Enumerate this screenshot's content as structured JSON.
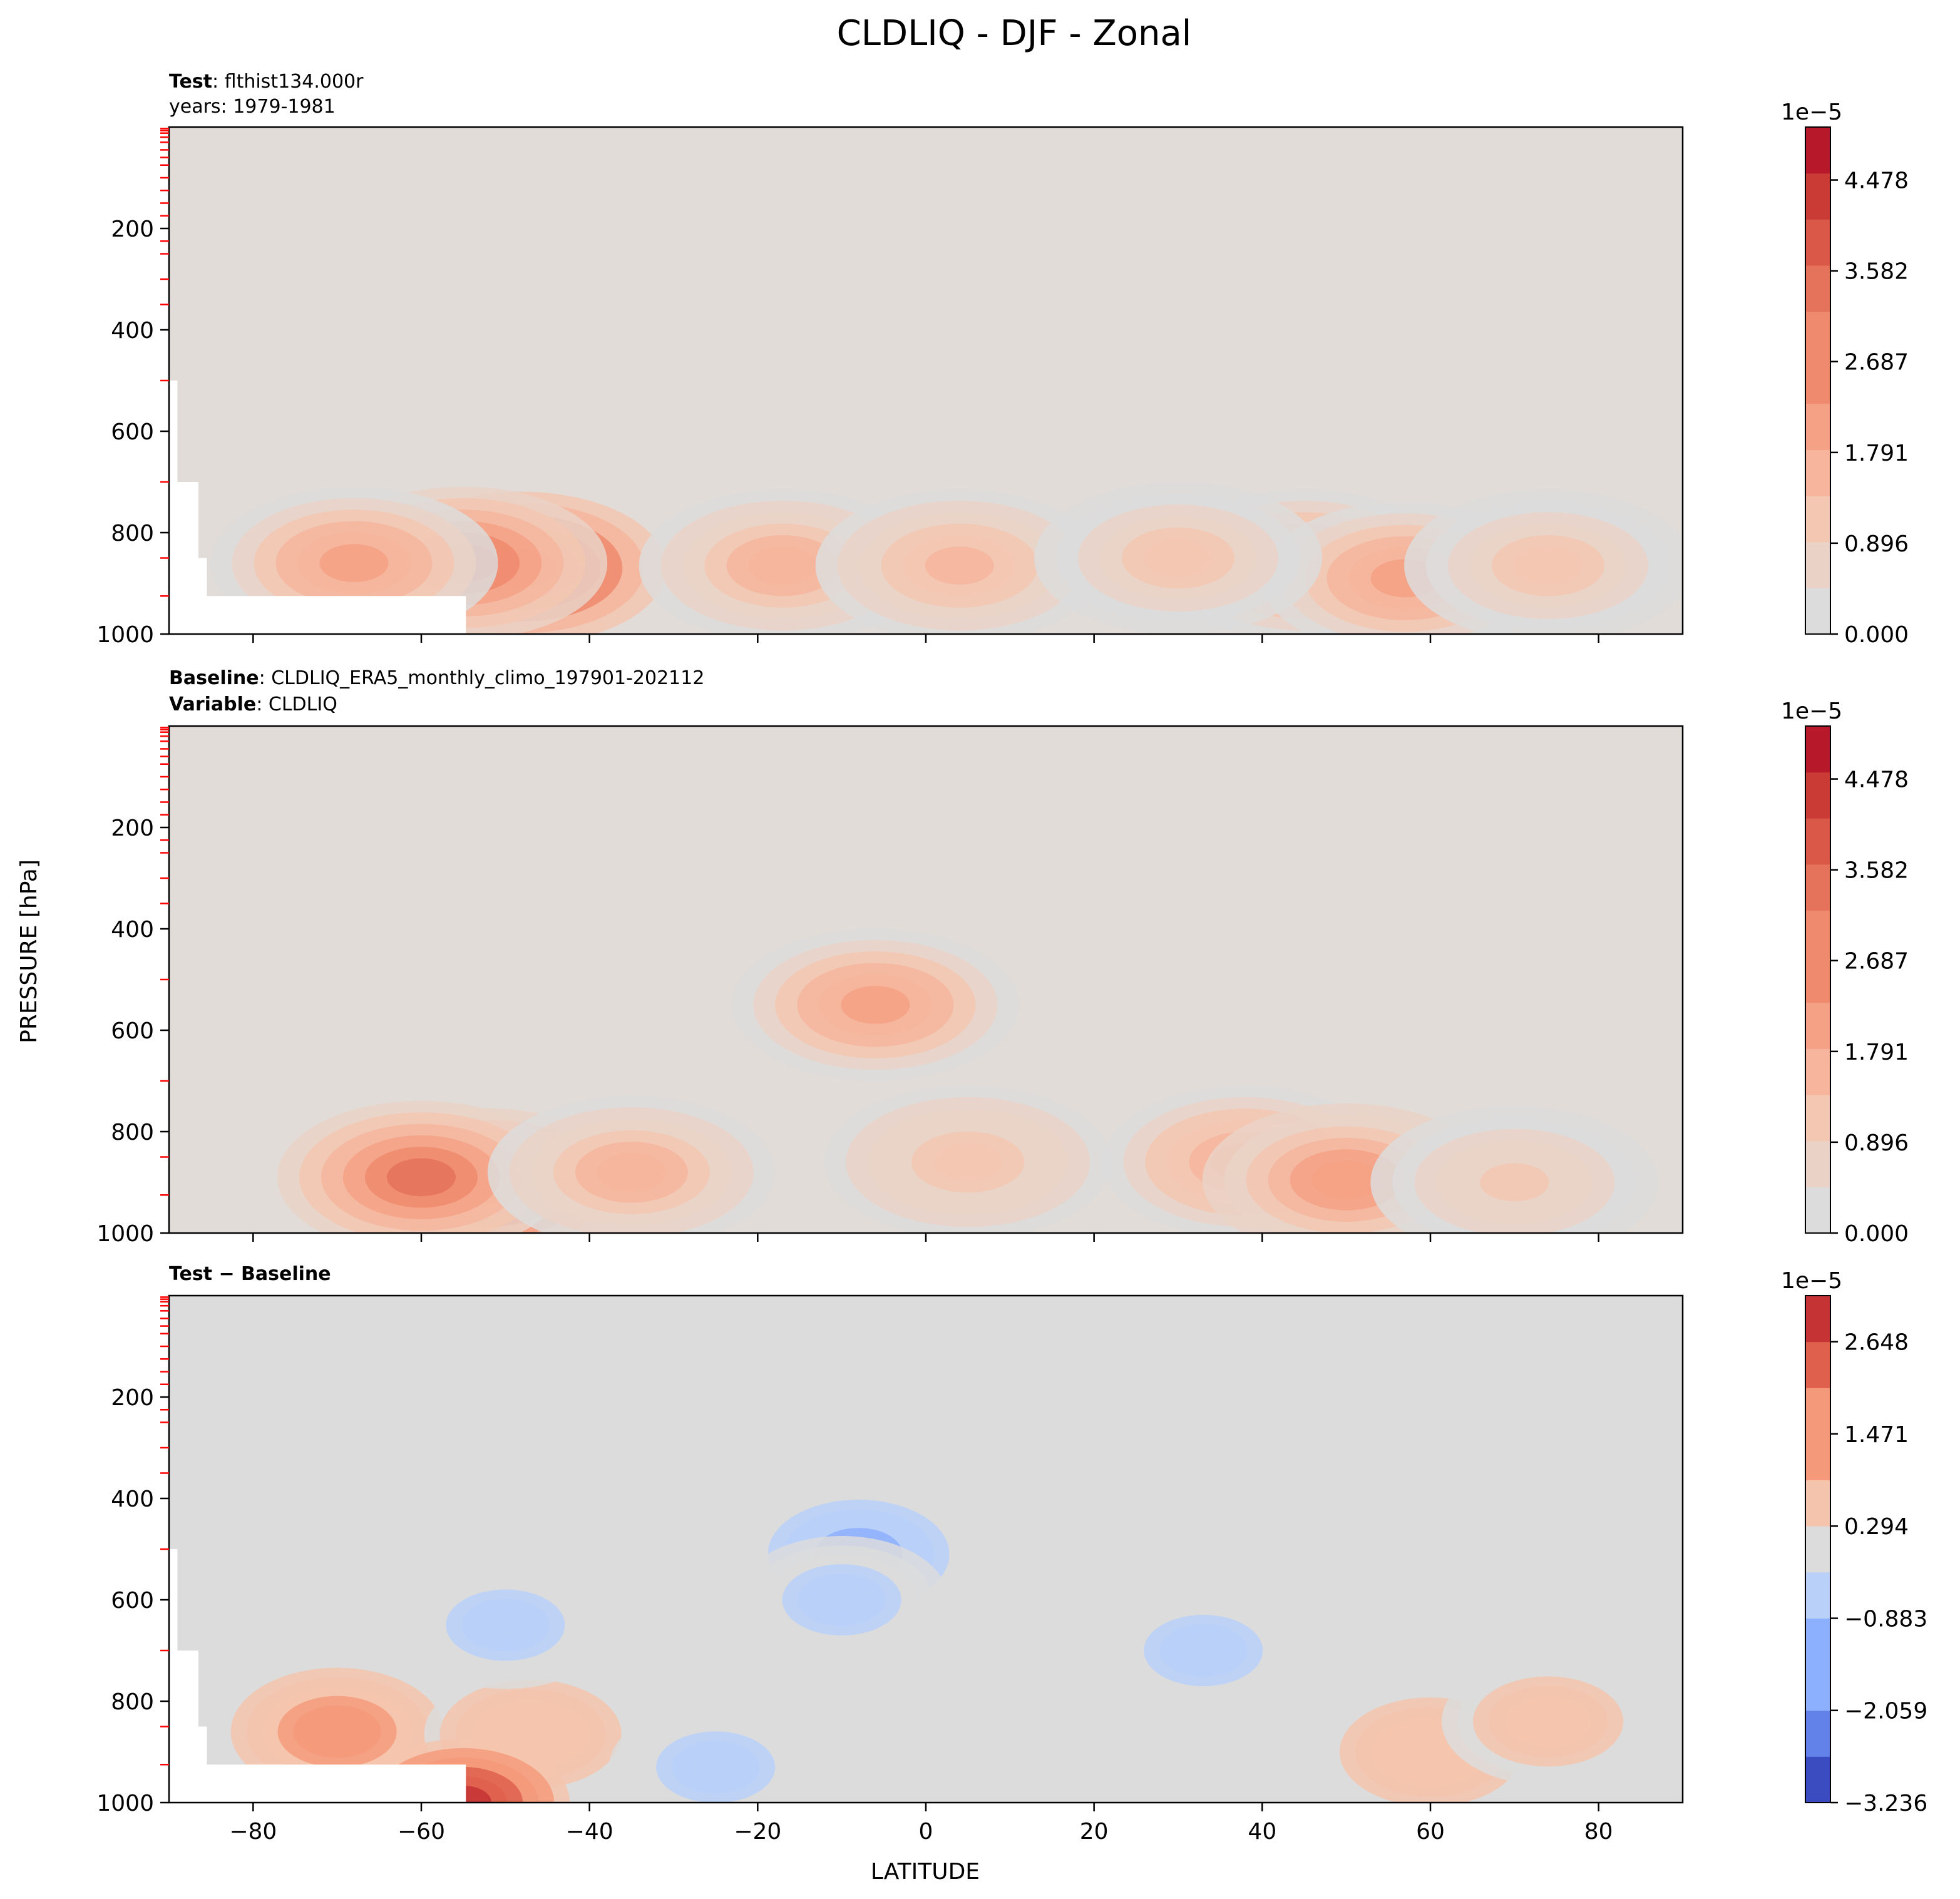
{
  "figure": {
    "title": "CLDLIQ - DJF - Zonal",
    "ylabel": "PRESSURE [hPa]",
    "xlabel": "LATITUDE"
  },
  "colors": {
    "background_neutral": "#e1dcd7",
    "diff_neutral": "#dcdcdc",
    "missing": "#ffffff",
    "red_ticks": "#ff0000",
    "seq_scale": [
      "#dddcdc",
      "#ead2c7",
      "#f3c7b2",
      "#f6b59c",
      "#f4a185",
      "#ef8a6e",
      "#e5725a",
      "#d95847",
      "#cb3b36",
      "#b7182a"
    ],
    "div_scale": [
      "#3b4cc0",
      "#6282ea",
      "#8db0fe",
      "#b9d0f9",
      "#dcdcdc",
      "#f5c4ad",
      "#f49a7b",
      "#de604d",
      "#c53334"
    ]
  },
  "chart_data": [
    {
      "type": "heatmap",
      "panel": "test",
      "header": [
        {
          "bold": "Test",
          "text": ": flthist134.000r"
        },
        {
          "bold": "",
          "text": "years: 1979-1981"
        }
      ],
      "xlim": [
        -90,
        90
      ],
      "ylim": [
        1000,
        0
      ],
      "yscale": "linear",
      "xticks": [
        -80,
        -60,
        -40,
        -20,
        0,
        20,
        40,
        60,
        80
      ],
      "xticklabels_shown": false,
      "yticks": [
        200,
        400,
        600,
        800,
        1000
      ],
      "ytick_labels": [
        "200",
        "400",
        "600",
        "800",
        "1000"
      ],
      "colorbar": {
        "multiplier": "1e−5",
        "vmin": 0.0,
        "vmax": 5.0,
        "tick_values": [
          0.0,
          0.896,
          1.791,
          2.687,
          3.582,
          4.478
        ],
        "tick_labels": [
          "0.000",
          "0.896",
          "1.791",
          "2.687",
          "3.582",
          "4.478"
        ],
        "levels": 11,
        "scale": "seq_scale"
      },
      "features": [
        {
          "lat": -48,
          "p": 870,
          "value": 4.8
        },
        {
          "lat": -55,
          "p": 860,
          "value": 3.4
        },
        {
          "lat": -68,
          "p": 860,
          "value": 2.3
        },
        {
          "lat": -17,
          "p": 865,
          "value": 1.8
        },
        {
          "lat": 4,
          "p": 865,
          "value": 1.7
        },
        {
          "lat": 45,
          "p": 865,
          "value": 2.2
        },
        {
          "lat": 57,
          "p": 890,
          "value": 2.3
        },
        {
          "lat": 30,
          "p": 850,
          "value": 1.3
        },
        {
          "lat": 74,
          "p": 865,
          "value": 1.2
        }
      ]
    },
    {
      "type": "heatmap",
      "panel": "baseline",
      "header": [
        {
          "bold": "Baseline",
          "text": ": CLDLIQ_ERA5_monthly_climo_197901-202112"
        },
        {
          "bold": "Variable",
          "text": ": CLDLIQ"
        }
      ],
      "xlim": [
        -90,
        90
      ],
      "ylim": [
        1000,
        0
      ],
      "yscale": "linear",
      "xticks": [
        -80,
        -60,
        -40,
        -20,
        0,
        20,
        40,
        60,
        80
      ],
      "xticklabels_shown": false,
      "yticks": [
        200,
        400,
        600,
        800,
        1000
      ],
      "ytick_labels": [
        "200",
        "400",
        "600",
        "800",
        "1000"
      ],
      "colorbar": {
        "multiplier": "1e−5",
        "vmin": 0.0,
        "vmax": 5.0,
        "tick_values": [
          0.0,
          0.896,
          1.791,
          2.687,
          3.582,
          4.478
        ],
        "tick_labels": [
          "0.000",
          "0.896",
          "1.791",
          "2.687",
          "3.582",
          "4.478"
        ],
        "levels": 11,
        "scale": "seq_scale"
      },
      "features": [
        {
          "lat": -52,
          "p": 905,
          "value": 4.7
        },
        {
          "lat": -60,
          "p": 890,
          "value": 3.0
        },
        {
          "lat": -35,
          "p": 880,
          "value": 1.8
        },
        {
          "lat": -6,
          "p": 550,
          "value": 2.2
        },
        {
          "lat": 38,
          "p": 860,
          "value": 2.0
        },
        {
          "lat": 50,
          "p": 895,
          "value": 2.4
        },
        {
          "lat": 5,
          "p": 860,
          "value": 1.4
        },
        {
          "lat": 70,
          "p": 900,
          "value": 1.0
        }
      ]
    },
    {
      "type": "heatmap",
      "panel": "difference",
      "header": [
        {
          "bold": "Test − Baseline",
          "text": ""
        }
      ],
      "xlim": [
        -90,
        90
      ],
      "ylim": [
        1000,
        0
      ],
      "yscale": "linear",
      "xticks": [
        -80,
        -60,
        -40,
        -20,
        0,
        20,
        40,
        60,
        80
      ],
      "xtick_labels": [
        "−80",
        "−60",
        "−40",
        "−20",
        "0",
        "20",
        "40",
        "60",
        "80"
      ],
      "xticklabels_shown": true,
      "yticks": [
        200,
        400,
        600,
        800,
        1000
      ],
      "ytick_labels": [
        "200",
        "400",
        "600",
        "800",
        "1000"
      ],
      "colorbar": {
        "multiplier": "1e−5",
        "vmin": -3.236,
        "vmax": 3.236,
        "tick_values": [
          -3.236,
          -2.059,
          -0.883,
          0.294,
          1.471,
          2.648
        ],
        "tick_labels": [
          "−3.236",
          "−2.059",
          "−0.883",
          "0.294",
          "1.471",
          "2.648"
        ],
        "levels": 11,
        "scale": "div_scale"
      },
      "features": [
        {
          "lat": -70,
          "p": 860,
          "value": 1.7
        },
        {
          "lat": -47,
          "p": 865,
          "value": 1.0
        },
        {
          "lat": -55,
          "p": 1000,
          "value": 2.9
        },
        {
          "lat": -50,
          "p": 650,
          "value": -0.6
        },
        {
          "lat": -8,
          "p": 510,
          "value": -1.3
        },
        {
          "lat": -10,
          "p": 600,
          "value": -0.6
        },
        {
          "lat": -25,
          "p": 930,
          "value": -0.6
        },
        {
          "lat": 33,
          "p": 700,
          "value": -0.6
        },
        {
          "lat": 60,
          "p": 900,
          "value": 0.9
        },
        {
          "lat": 74,
          "p": 840,
          "value": 0.8
        }
      ]
    }
  ]
}
